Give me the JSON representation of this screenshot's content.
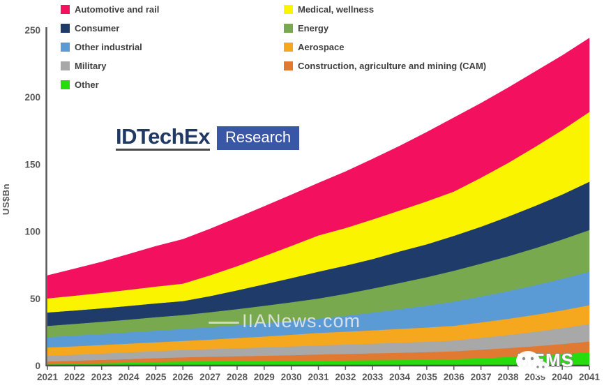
{
  "page": {
    "background": "#ffffff"
  },
  "logo": {
    "brand": "IDTechEx",
    "sub": "Research",
    "brand_color": "#1F3864",
    "box_color": "#3A57A7"
  },
  "watermark": {
    "site": "IIANews.com"
  },
  "badge": {
    "label": "MEMS"
  },
  "legend": {
    "col1": [
      {
        "key": "automotive",
        "label": "Automotive and rail",
        "color": "#F2105F"
      },
      {
        "key": "consumer",
        "label": "Consumer",
        "color": "#1F3B69"
      },
      {
        "key": "other_industrial",
        "label": "Other industrial",
        "color": "#5B9BD5"
      },
      {
        "key": "military",
        "label": "Military",
        "color": "#A8A8A8"
      },
      {
        "key": "other",
        "label": "Other",
        "color": "#26DC0D"
      }
    ],
    "col2": [
      {
        "key": "medical",
        "label": "Medical, wellness",
        "color": "#FAF400"
      },
      {
        "key": "energy",
        "label": "Energy",
        "color": "#79A94E"
      },
      {
        "key": "aerospace",
        "label": "Aerospace",
        "color": "#F5A71E"
      },
      {
        "key": "cam",
        "label": "Construction, agriculture and mining (CAM)",
        "color": "#E07A33"
      }
    ]
  },
  "chart_data": {
    "type": "area",
    "stacked": true,
    "title": "",
    "xlabel": "",
    "ylabel": "US$Bn",
    "ylim": [
      0,
      250
    ],
    "yticks": [
      0,
      50,
      100,
      150,
      200,
      250
    ],
    "grid": false,
    "legend_position": "top",
    "axis_color": "#595959",
    "years": [
      2021,
      2022,
      2023,
      2024,
      2025,
      2026,
      2027,
      2028,
      2029,
      2030,
      2031,
      2032,
      2033,
      2034,
      2035,
      2036,
      2037,
      2038,
      2039,
      2040,
      2041
    ],
    "stack_order_bottom_to_top": [
      "other",
      "cam",
      "military",
      "aerospace",
      "other_industrial",
      "energy",
      "consumer",
      "medical",
      "automotive"
    ],
    "series": [
      {
        "key": "automotive",
        "name": "Automotive and rail",
        "color": "#F2105F",
        "values": [
          17,
          20,
          23,
          26.5,
          30,
          33,
          34.5,
          36,
          37,
          38,
          39,
          42,
          45,
          48,
          51.5,
          55,
          55.5,
          56,
          56,
          55.5,
          55
        ]
      },
      {
        "key": "medical",
        "name": "Medical, wellness",
        "color": "#FAF400",
        "values": [
          10.5,
          11,
          11.5,
          12,
          12.5,
          13,
          15.5,
          18,
          21,
          24,
          27,
          28,
          29.5,
          30.5,
          32,
          33,
          36.5,
          40,
          44,
          48,
          52
        ]
      },
      {
        "key": "consumer",
        "name": "Consumer",
        "color": "#1F3B69",
        "values": [
          10,
          10,
          10,
          10.2,
          10.3,
          10.4,
          12,
          14,
          16,
          18,
          20,
          21,
          22,
          23.5,
          24.5,
          26,
          27.5,
          29.5,
          31.5,
          33.5,
          36
        ]
      },
      {
        "key": "energy",
        "name": "Energy",
        "color": "#79A94E",
        "values": [
          8.3,
          8.7,
          9.1,
          9.5,
          10,
          10.4,
          11.2,
          12,
          13,
          14,
          15,
          16.4,
          17.9,
          19.5,
          21.2,
          23,
          24.5,
          26,
          27.6,
          29.3,
          31
        ]
      },
      {
        "key": "other_industrial",
        "name": "Other industrial",
        "color": "#5B9BD5",
        "values": [
          7.8,
          8,
          8.2,
          8.4,
          8.7,
          8.9,
          9.2,
          9.5,
          9.9,
          10.2,
          10.6,
          11.8,
          13.2,
          14.7,
          16.3,
          18,
          19.3,
          20.6,
          22,
          23.5,
          25
        ]
      },
      {
        "key": "aerospace",
        "name": "Aerospace",
        "color": "#F5A71E",
        "values": [
          6.2,
          6.3,
          6.4,
          6.5,
          6.6,
          6.7,
          7.1,
          7.6,
          8.1,
          8.7,
          9.3,
          9.6,
          9.9,
          10.3,
          10.6,
          11,
          11.5,
          12.1,
          12.7,
          13.3,
          14
        ]
      },
      {
        "key": "military",
        "name": "Military",
        "color": "#A8A8A8",
        "values": [
          4.2,
          4.4,
          4.7,
          5,
          5.2,
          5.5,
          5.7,
          6,
          6.2,
          6.5,
          6.8,
          7,
          7.2,
          7.5,
          7.7,
          8,
          8.8,
          9.7,
          10.7,
          11.8,
          13
        ]
      },
      {
        "key": "cam",
        "name": "Construction, agriculture and mining (CAM)",
        "color": "#E07A33",
        "values": [
          2.1,
          2.3,
          2.5,
          2.7,
          2.9,
          3.1,
          3.4,
          3.7,
          4,
          4.3,
          4.7,
          4.9,
          5.2,
          5.4,
          5.7,
          6,
          6.4,
          6.7,
          7.1,
          7.5,
          8
        ]
      },
      {
        "key": "other",
        "name": "Other",
        "color": "#26DC0D",
        "values": [
          1,
          1.4,
          1.8,
          2.2,
          2.7,
          3.1,
          3.2,
          3.3,
          3.4,
          3.5,
          3.6,
          3.8,
          4,
          4.2,
          4.4,
          4.7,
          5.5,
          6.4,
          7.4,
          8.6,
          10
        ]
      }
    ]
  }
}
